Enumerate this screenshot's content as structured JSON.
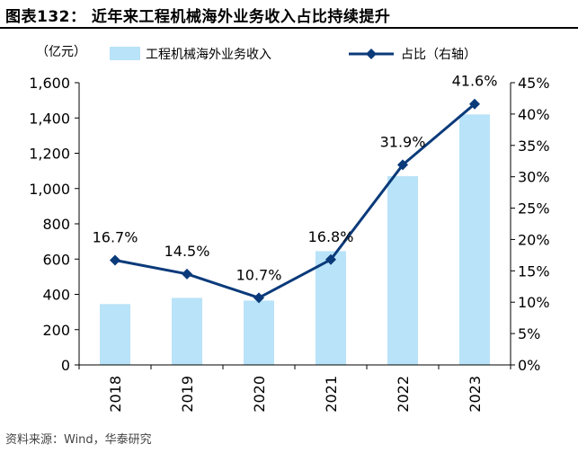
{
  "figure": {
    "title": "图表132：  近年来工程机械海外业务收入占比持续提升",
    "source": "资料来源：Wind，华泰研究"
  },
  "chart_data": {
    "type": "bar",
    "categories": [
      "2018",
      "2019",
      "2020",
      "2021",
      "2022",
      "2023"
    ],
    "series": [
      {
        "name": "工程机械海外业务收入",
        "type": "bar",
        "axis": "left",
        "values": [
          345,
          380,
          365,
          645,
          1070,
          1420
        ],
        "color": "#B9E3F8"
      },
      {
        "name": "占比（右轴）",
        "type": "line",
        "axis": "right",
        "values": [
          16.7,
          14.5,
          10.7,
          16.8,
          31.9,
          41.6
        ],
        "color": "#0A3A7A"
      }
    ],
    "line_labels": [
      "16.7%",
      "14.5%",
      "10.7%",
      "16.8%",
      "31.9%",
      "41.6%"
    ],
    "ylabel": "（亿元）",
    "ylim": [
      0,
      1600
    ],
    "yticks": [
      "0",
      "200",
      "400",
      "600",
      "800",
      "1,000",
      "1,200",
      "1,400",
      "1,600"
    ],
    "y2lim": [
      0,
      45
    ],
    "y2ticks": [
      "0%",
      "5%",
      "10%",
      "15%",
      "20%",
      "25%",
      "30%",
      "35%",
      "40%",
      "45%"
    ],
    "legend_position": "top",
    "grid": false
  }
}
